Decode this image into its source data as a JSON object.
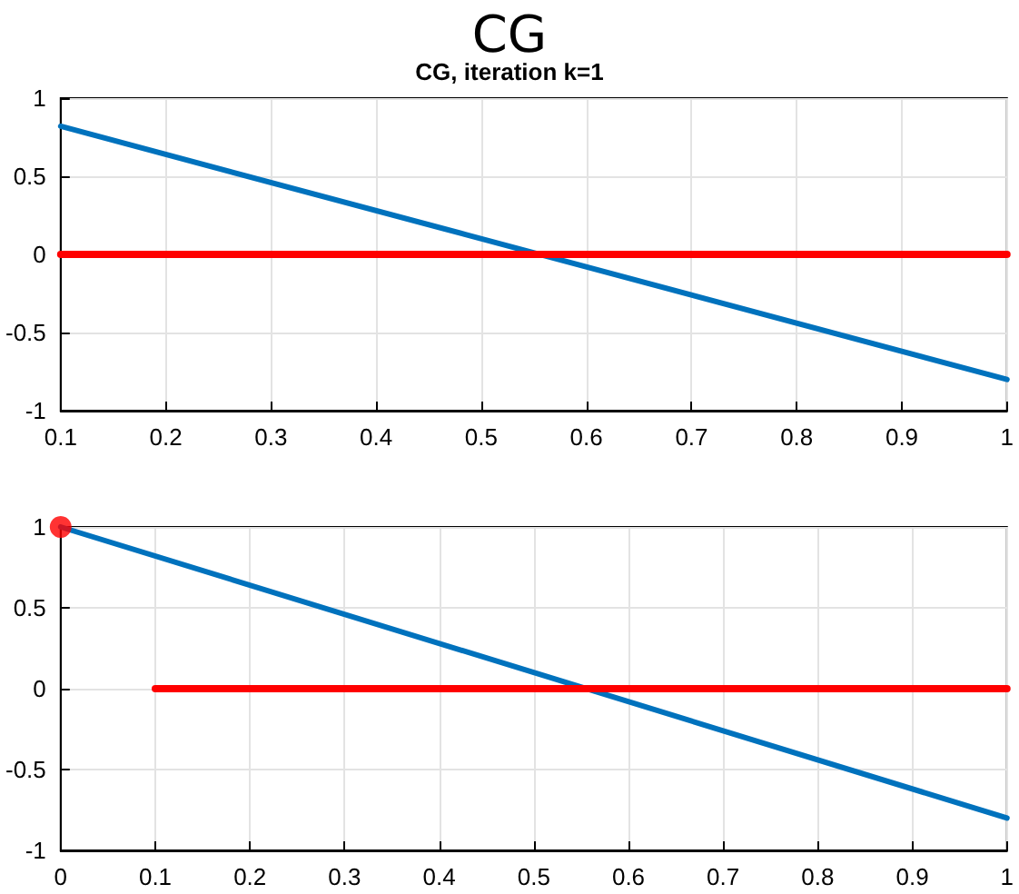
{
  "chart_data": [
    {
      "type": "line",
      "title": "CG",
      "subtitle": "CG, iteration k=1",
      "xlim": [
        0.1,
        1
      ],
      "xticks": [
        0.1,
        0.2,
        0.3,
        0.4,
        0.5,
        0.6,
        0.7,
        0.8,
        0.9,
        1
      ],
      "ylim": [
        -1,
        1
      ],
      "yticks": [
        -1,
        -0.5,
        0,
        0.5,
        1
      ],
      "grid": true,
      "marker": "none",
      "series": [
        {
          "color": "#0072bd",
          "x": [
            0.1,
            1
          ],
          "values": [
            0.82,
            -0.8
          ]
        },
        {
          "color": "#ff0000",
          "x": [
            0.1,
            1
          ],
          "values": [
            0,
            0
          ]
        }
      ]
    },
    {
      "type": "line",
      "xlim": [
        0,
        1
      ],
      "xticks": [
        0,
        0.1,
        0.2,
        0.3,
        0.4,
        0.5,
        0.6,
        0.7,
        0.8,
        0.9,
        1
      ],
      "ylim": [
        -1,
        1
      ],
      "yticks": [
        -1,
        -0.5,
        0,
        0.5,
        1
      ],
      "grid": true,
      "marker": "none",
      "series": [
        {
          "color": "#0072bd",
          "x": [
            0,
            1
          ],
          "values": [
            1,
            -0.8
          ]
        },
        {
          "color": "#ff0000",
          "x": [
            0.1,
            1
          ],
          "values": [
            0,
            0
          ]
        },
        {
          "type": "scatter",
          "marker": "circle",
          "color": "#ff0000",
          "x": [
            0
          ],
          "values": [
            1
          ]
        }
      ]
    }
  ]
}
